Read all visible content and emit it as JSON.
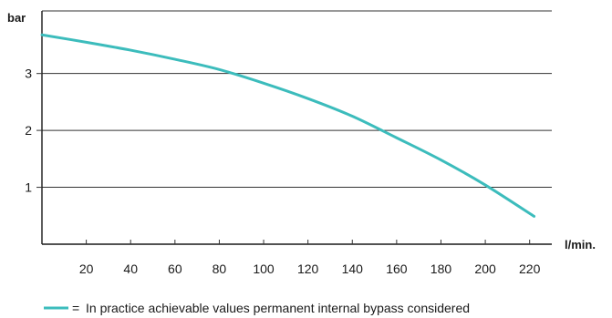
{
  "chart_data": {
    "type": "line",
    "xlabel": "l/min.",
    "ylabel": "bar",
    "x_ticks": [
      20,
      40,
      60,
      80,
      100,
      120,
      140,
      160,
      180,
      200,
      220
    ],
    "y_ticks": [
      1,
      2,
      3
    ],
    "xlim": [
      0,
      230
    ],
    "ylim": [
      0,
      4.1
    ],
    "grid": "horizontal",
    "legend_position": "bottom",
    "legend_prefix": "=",
    "series": [
      {
        "name": "In practice achievable values permanent internal bypass considered",
        "color": "#3cbcbc",
        "x": [
          0,
          20,
          40,
          60,
          80,
          100,
          120,
          140,
          160,
          180,
          200,
          222
        ],
        "y": [
          3.68,
          3.55,
          3.41,
          3.25,
          3.07,
          2.83,
          2.56,
          2.25,
          1.87,
          1.48,
          1.04,
          0.49
        ]
      }
    ]
  }
}
